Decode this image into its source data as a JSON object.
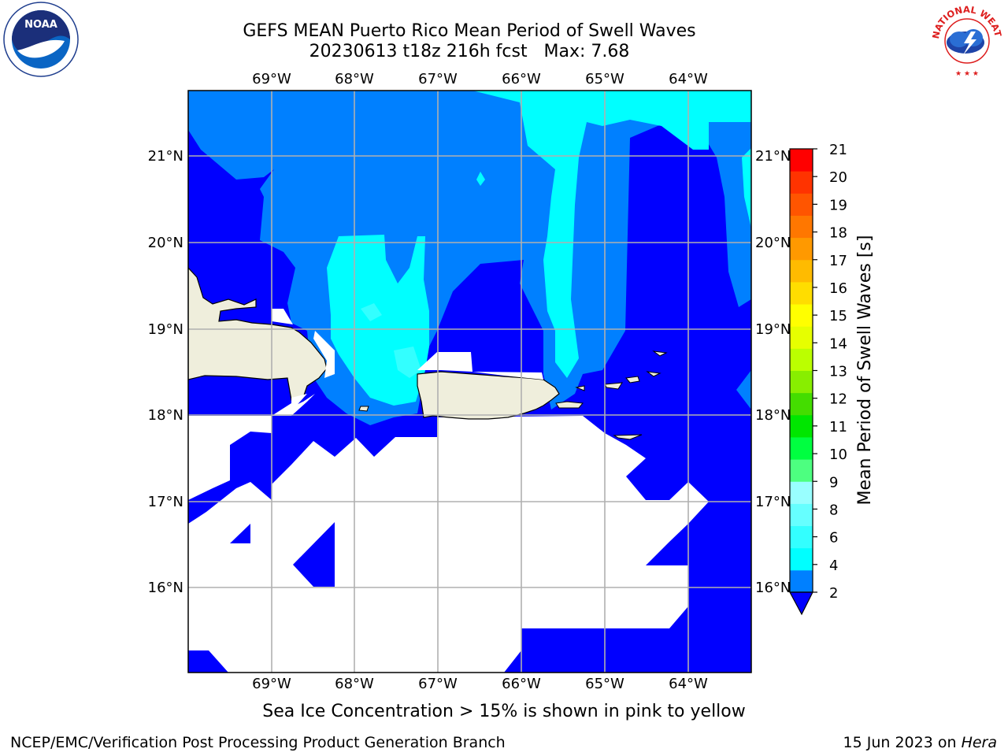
{
  "title": {
    "line1": "GEFS MEAN Puerto Rico Mean Period of Swell Waves",
    "line2": "20230613 t18z 216h fcst   Max: 7.68"
  },
  "map": {
    "lon_labels": [
      "69°W",
      "68°W",
      "67°W",
      "66°W",
      "65°W",
      "64°W"
    ],
    "lat_labels": [
      "21°N",
      "20°N",
      "19°N",
      "18°N",
      "17°N",
      "16°N"
    ],
    "land_color": "#efeedc",
    "ocean_colors": {
      "band_2_4": "#0080ff",
      "band_4_6": "#00ffff",
      "band_6_8": "#33ffff",
      "below_2": "#0000ff"
    }
  },
  "colorbar": {
    "label": "Mean Period of Swell Waves [s]",
    "ticks": [
      "21",
      "20",
      "19",
      "18",
      "17",
      "16",
      "15",
      "14",
      "13",
      "12",
      "11",
      "10",
      "9",
      "8",
      "6",
      "4",
      "2"
    ],
    "colors": [
      "#0080ff",
      "#00ffff",
      "#33ffff",
      "#66ffff",
      "#99ffff",
      "#4dff80",
      "#00ff40",
      "#00e600",
      "#44dd00",
      "#88ee00",
      "#bbff00",
      "#e6ff00",
      "#ffff00",
      "#ffdd00",
      "#ffbb00",
      "#ff9900",
      "#ff7700",
      "#ff5500",
      "#ff3300",
      "#ff0000"
    ],
    "extend_color": "#0000ff"
  },
  "note": "Sea Ice Concentration > 15% is shown in pink to yellow",
  "footer": {
    "left": "NCEP/EMC/Verification Post Processing Product Generation Branch",
    "date": "15 Jun 2023 on ",
    "host": "Hera"
  },
  "logos": {
    "noaa_text": "NOAA",
    "nws_text": "NATIONAL WEATHER SERVICE"
  }
}
